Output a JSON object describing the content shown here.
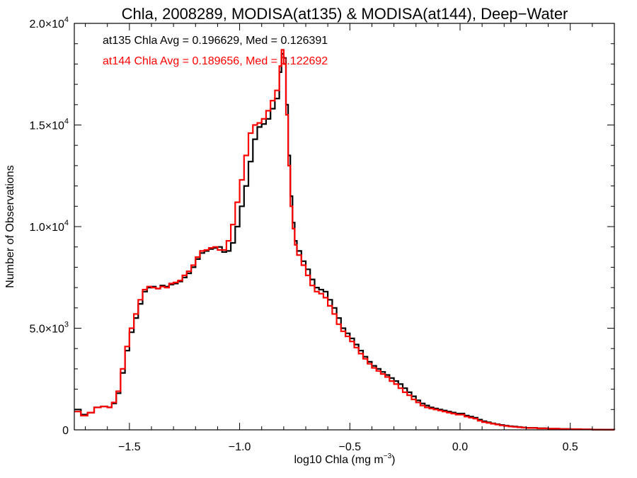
{
  "chart_data": {
    "type": "line",
    "title": "Chla, 2008289, MODISA(at135) & MODISA(at144), Deep−Water",
    "xlabel": "log10 Chla (mg m",
    "xlabel_sup": "−3",
    "xlabel_close": ")",
    "ylabel": "Number of Observations",
    "xlim": [
      -1.75,
      0.7
    ],
    "ylim": [
      0,
      20000
    ],
    "x_ticks": [
      {
        "value": -1.5,
        "label": "−1.5"
      },
      {
        "value": -1.0,
        "label": "−1.0"
      },
      {
        "value": -0.5,
        "label": "−0.5"
      },
      {
        "value": 0.0,
        "label": "0.0"
      },
      {
        "value": 0.5,
        "label": "0.5"
      }
    ],
    "y_ticks": [
      {
        "value": 0,
        "label": "0",
        "sup": ""
      },
      {
        "value": 5000,
        "label": "5.0×10",
        "sup": "3"
      },
      {
        "value": 10000,
        "label": "1.0×10",
        "sup": "4"
      },
      {
        "value": 15000,
        "label": "1.5×10",
        "sup": "4"
      },
      {
        "value": 20000,
        "label": "2.0×10",
        "sup": "4"
      }
    ],
    "annotations": [
      {
        "text": "at135 Chla Avg = 0.196629, Med = 0.126391",
        "color": "#000000"
      },
      {
        "text": "at144 Chla Avg = 0.189656, Med = 0.122692",
        "color": "#ff0000"
      }
    ],
    "series": [
      {
        "color": "#000000",
        "points": [
          [
            -1.75,
            1000
          ],
          [
            -1.72,
            750
          ],
          [
            -1.69,
            850
          ],
          [
            -1.66,
            1100
          ],
          [
            -1.63,
            1150
          ],
          [
            -1.6,
            1100
          ],
          [
            -1.58,
            1300
          ],
          [
            -1.56,
            1800
          ],
          [
            -1.54,
            2800
          ],
          [
            -1.52,
            3900
          ],
          [
            -1.5,
            4800
          ],
          [
            -1.48,
            5500
          ],
          [
            -1.46,
            6200
          ],
          [
            -1.44,
            6800
          ],
          [
            -1.42,
            7000
          ],
          [
            -1.4,
            7050
          ],
          [
            -1.38,
            6950
          ],
          [
            -1.36,
            7100
          ],
          [
            -1.34,
            7050
          ],
          [
            -1.32,
            7150
          ],
          [
            -1.3,
            7200
          ],
          [
            -1.28,
            7300
          ],
          [
            -1.26,
            7500
          ],
          [
            -1.24,
            7700
          ],
          [
            -1.22,
            8000
          ],
          [
            -1.2,
            8400
          ],
          [
            -1.18,
            8700
          ],
          [
            -1.16,
            8800
          ],
          [
            -1.14,
            8900
          ],
          [
            -1.12,
            8950
          ],
          [
            -1.1,
            9000
          ],
          [
            -1.08,
            8750
          ],
          [
            -1.06,
            8800
          ],
          [
            -1.04,
            9200
          ],
          [
            -1.02,
            10000
          ],
          [
            -1.0,
            11000
          ],
          [
            -0.98,
            12000
          ],
          [
            -0.96,
            13200
          ],
          [
            -0.94,
            14300
          ],
          [
            -0.92,
            14900
          ],
          [
            -0.9,
            15050
          ],
          [
            -0.88,
            15300
          ],
          [
            -0.86,
            15800
          ],
          [
            -0.84,
            16300
          ],
          [
            -0.82,
            17600
          ],
          [
            -0.81,
            18500
          ],
          [
            -0.8,
            18300
          ],
          [
            -0.79,
            16000
          ],
          [
            -0.78,
            13500
          ],
          [
            -0.77,
            11500
          ],
          [
            -0.76,
            10200
          ],
          [
            -0.75,
            9300
          ],
          [
            -0.74,
            8800
          ],
          [
            -0.72,
            8300
          ],
          [
            -0.7,
            7900
          ],
          [
            -0.68,
            7400
          ],
          [
            -0.66,
            7000
          ],
          [
            -0.64,
            6900
          ],
          [
            -0.62,
            6800
          ],
          [
            -0.6,
            6400
          ],
          [
            -0.58,
            6000
          ],
          [
            -0.56,
            5500
          ],
          [
            -0.54,
            5000
          ],
          [
            -0.52,
            4750
          ],
          [
            -0.5,
            4500
          ],
          [
            -0.48,
            4200
          ],
          [
            -0.46,
            3900
          ],
          [
            -0.44,
            3600
          ],
          [
            -0.42,
            3350
          ],
          [
            -0.4,
            3150
          ],
          [
            -0.38,
            3000
          ],
          [
            -0.36,
            2850
          ],
          [
            -0.34,
            2700
          ],
          [
            -0.32,
            2550
          ],
          [
            -0.3,
            2400
          ],
          [
            -0.28,
            2250
          ],
          [
            -0.26,
            2050
          ],
          [
            -0.24,
            1850
          ],
          [
            -0.22,
            1650
          ],
          [
            -0.2,
            1450
          ],
          [
            -0.18,
            1300
          ],
          [
            -0.16,
            1200
          ],
          [
            -0.14,
            1100
          ],
          [
            -0.12,
            1050
          ],
          [
            -0.1,
            1000
          ],
          [
            -0.08,
            950
          ],
          [
            -0.06,
            900
          ],
          [
            -0.04,
            850
          ],
          [
            -0.02,
            800
          ],
          [
            0.0,
            800
          ],
          [
            0.02,
            700
          ],
          [
            0.04,
            650
          ],
          [
            0.06,
            600
          ],
          [
            0.08,
            500
          ],
          [
            0.1,
            420
          ],
          [
            0.12,
            370
          ],
          [
            0.14,
            320
          ],
          [
            0.16,
            280
          ],
          [
            0.18,
            240
          ],
          [
            0.2,
            210
          ],
          [
            0.22,
            180
          ],
          [
            0.24,
            160
          ],
          [
            0.26,
            140
          ],
          [
            0.28,
            120
          ],
          [
            0.3,
            100
          ],
          [
            0.35,
            80
          ],
          [
            0.4,
            60
          ],
          [
            0.45,
            45
          ],
          [
            0.5,
            35
          ],
          [
            0.55,
            25
          ],
          [
            0.6,
            15
          ],
          [
            0.65,
            10
          ],
          [
            0.7,
            5
          ]
        ]
      },
      {
        "color": "#ff0000",
        "points": [
          [
            -1.75,
            900
          ],
          [
            -1.72,
            700
          ],
          [
            -1.69,
            850
          ],
          [
            -1.66,
            1100
          ],
          [
            -1.63,
            1150
          ],
          [
            -1.6,
            1100
          ],
          [
            -1.58,
            1350
          ],
          [
            -1.56,
            1900
          ],
          [
            -1.54,
            3000
          ],
          [
            -1.52,
            4100
          ],
          [
            -1.5,
            5000
          ],
          [
            -1.48,
            5700
          ],
          [
            -1.46,
            6400
          ],
          [
            -1.44,
            6900
          ],
          [
            -1.42,
            7050
          ],
          [
            -1.4,
            7000
          ],
          [
            -1.38,
            6950
          ],
          [
            -1.36,
            7050
          ],
          [
            -1.34,
            7000
          ],
          [
            -1.32,
            7200
          ],
          [
            -1.3,
            7250
          ],
          [
            -1.28,
            7350
          ],
          [
            -1.26,
            7600
          ],
          [
            -1.24,
            7800
          ],
          [
            -1.22,
            8100
          ],
          [
            -1.2,
            8500
          ],
          [
            -1.18,
            8800
          ],
          [
            -1.16,
            8850
          ],
          [
            -1.14,
            8950
          ],
          [
            -1.12,
            9000
          ],
          [
            -1.1,
            8850
          ],
          [
            -1.08,
            8850
          ],
          [
            -1.06,
            9300
          ],
          [
            -1.04,
            10100
          ],
          [
            -1.02,
            11200
          ],
          [
            -1.0,
            12300
          ],
          [
            -0.98,
            13500
          ],
          [
            -0.96,
            14600
          ],
          [
            -0.94,
            15000
          ],
          [
            -0.92,
            15100
          ],
          [
            -0.9,
            15300
          ],
          [
            -0.88,
            15700
          ],
          [
            -0.86,
            16200
          ],
          [
            -0.84,
            16700
          ],
          [
            -0.82,
            17900
          ],
          [
            -0.81,
            18700
          ],
          [
            -0.8,
            18000
          ],
          [
            -0.79,
            15500
          ],
          [
            -0.78,
            13000
          ],
          [
            -0.77,
            11000
          ],
          [
            -0.76,
            9900
          ],
          [
            -0.75,
            9100
          ],
          [
            -0.74,
            8600
          ],
          [
            -0.72,
            8100
          ],
          [
            -0.7,
            7600
          ],
          [
            -0.68,
            7100
          ],
          [
            -0.66,
            6800
          ],
          [
            -0.64,
            6700
          ],
          [
            -0.62,
            6500
          ],
          [
            -0.6,
            6100
          ],
          [
            -0.58,
            5700
          ],
          [
            -0.56,
            5200
          ],
          [
            -0.54,
            4850
          ],
          [
            -0.52,
            4600
          ],
          [
            -0.5,
            4350
          ],
          [
            -0.48,
            4050
          ],
          [
            -0.46,
            3750
          ],
          [
            -0.44,
            3500
          ],
          [
            -0.42,
            3250
          ],
          [
            -0.4,
            3050
          ],
          [
            -0.38,
            2900
          ],
          [
            -0.36,
            2750
          ],
          [
            -0.34,
            2600
          ],
          [
            -0.32,
            2400
          ],
          [
            -0.3,
            2250
          ],
          [
            -0.28,
            2050
          ],
          [
            -0.26,
            1850
          ],
          [
            -0.24,
            1700
          ],
          [
            -0.22,
            1500
          ],
          [
            -0.2,
            1350
          ],
          [
            -0.18,
            1200
          ],
          [
            -0.16,
            1100
          ],
          [
            -0.14,
            1050
          ],
          [
            -0.12,
            1000
          ],
          [
            -0.1,
            950
          ],
          [
            -0.08,
            900
          ],
          [
            -0.06,
            850
          ],
          [
            -0.04,
            800
          ],
          [
            -0.02,
            750
          ],
          [
            0.0,
            750
          ],
          [
            0.02,
            650
          ],
          [
            0.04,
            600
          ],
          [
            0.06,
            550
          ],
          [
            0.08,
            450
          ],
          [
            0.1,
            380
          ],
          [
            0.12,
            340
          ],
          [
            0.14,
            300
          ],
          [
            0.16,
            260
          ],
          [
            0.18,
            220
          ],
          [
            0.2,
            190
          ],
          [
            0.22,
            165
          ],
          [
            0.24,
            145
          ],
          [
            0.26,
            125
          ],
          [
            0.28,
            110
          ],
          [
            0.3,
            90
          ],
          [
            0.35,
            70
          ],
          [
            0.4,
            55
          ],
          [
            0.45,
            40
          ],
          [
            0.5,
            30
          ],
          [
            0.55,
            20
          ],
          [
            0.6,
            12
          ],
          [
            0.65,
            8
          ],
          [
            0.7,
            4
          ]
        ]
      }
    ]
  }
}
